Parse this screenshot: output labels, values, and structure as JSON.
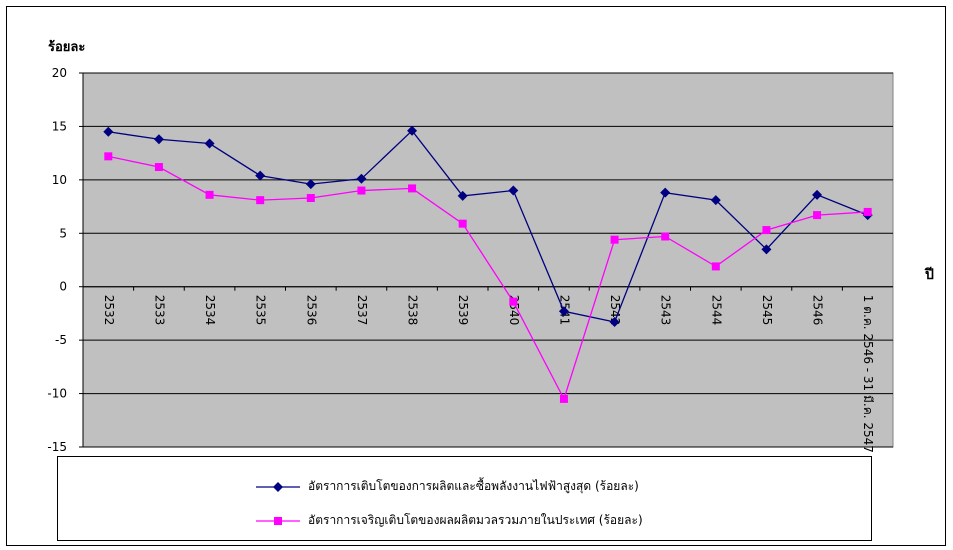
{
  "chart_data": {
    "type": "line",
    "ylabel": "ร้อยละ",
    "xlabel": "ปี",
    "ylim": [
      -15,
      20
    ],
    "yticks": [
      20,
      15,
      10,
      5,
      0,
      -5,
      -10,
      -15
    ],
    "categories": [
      "2532",
      "2533",
      "2534",
      "2535",
      "2536",
      "2537",
      "2538",
      "2539",
      "2540",
      "2541",
      "2542",
      "2543",
      "2544",
      "2545",
      "2546",
      "1 ต.ค. 2546 - 31 มี.ค. 2547"
    ],
    "series": [
      {
        "name": "อัตราการเติบโตของการผลิตและซื้อพลังงานไฟฟ้าสูงสุด (ร้อยละ)",
        "color": "#000080",
        "marker": "diamond",
        "values": [
          14.5,
          13.8,
          13.4,
          10.4,
          9.6,
          10.1,
          14.6,
          8.5,
          9.0,
          -2.3,
          -3.3,
          8.8,
          8.1,
          3.5,
          8.6,
          6.7
        ]
      },
      {
        "name": "อัตราการเจริญเติบโตของผลผลิตมวลรวมภายในประเทศ (ร้อยละ)",
        "color": "#ff00ff",
        "marker": "square",
        "values": [
          12.2,
          11.2,
          8.6,
          8.1,
          8.3,
          9.0,
          9.2,
          5.9,
          -1.4,
          -10.5,
          4.4,
          4.7,
          1.9,
          5.3,
          6.7,
          7.0
        ]
      }
    ],
    "plot_background": "#c0c0c0",
    "grid": true,
    "legend_position": "bottom"
  }
}
